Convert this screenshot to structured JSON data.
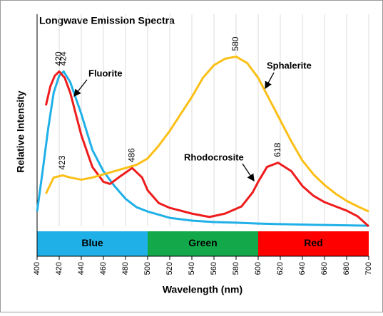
{
  "chart_data": {
    "type": "line",
    "title": "Longwave Emission Spectra",
    "x_label": "Wavelength (nm)",
    "y_label": "Relative Intensity",
    "xlim": [
      400,
      700
    ],
    "xticks": [
      400,
      420,
      440,
      460,
      480,
      500,
      520,
      540,
      560,
      580,
      600,
      620,
      640,
      660,
      680,
      700
    ],
    "ylim": [
      0,
      1
    ],
    "grid": true,
    "series": [
      {
        "name": "Fluorite",
        "color": "#1fb0e8",
        "x": [
          400,
          405,
          410,
          415,
          420,
          424,
          430,
          440,
          450,
          460,
          470,
          480,
          490,
          500,
          520,
          540,
          560,
          580,
          600,
          650,
          700
        ],
        "values": [
          0.07,
          0.26,
          0.46,
          0.63,
          0.71,
          0.73,
          0.68,
          0.53,
          0.36,
          0.26,
          0.19,
          0.13,
          0.09,
          0.07,
          0.04,
          0.027,
          0.02,
          0.017,
          0.013,
          0.007,
          0.003
        ]
      },
      {
        "name": "Rhodocrosite",
        "color": "#ee1c1c",
        "x": [
          408,
          412,
          416,
          420,
          425,
          430,
          440,
          450,
          460,
          466,
          475,
          486,
          495,
          500,
          510,
          520,
          540,
          556,
          570,
          585,
          595,
          600,
          608,
          618,
          630,
          640,
          650,
          660,
          670,
          680,
          690,
          700
        ],
        "values": [
          0.57,
          0.66,
          0.71,
          0.73,
          0.7,
          0.63,
          0.43,
          0.28,
          0.21,
          0.2,
          0.235,
          0.275,
          0.23,
          0.17,
          0.11,
          0.087,
          0.06,
          0.044,
          0.06,
          0.094,
          0.16,
          0.21,
          0.28,
          0.3,
          0.26,
          0.19,
          0.144,
          0.114,
          0.094,
          0.074,
          0.047,
          0
        ]
      },
      {
        "name": "Sphalerite",
        "color": "#fbbf16",
        "x": [
          408,
          415,
          423,
          430,
          440,
          450,
          460,
          470,
          480,
          490,
          500,
          510,
          520,
          530,
          540,
          550,
          560,
          570,
          580,
          590,
          600,
          610,
          620,
          630,
          640,
          650,
          660,
          670,
          680,
          690,
          700
        ],
        "values": [
          0.154,
          0.23,
          0.24,
          0.23,
          0.22,
          0.23,
          0.245,
          0.26,
          0.275,
          0.29,
          0.32,
          0.38,
          0.45,
          0.53,
          0.61,
          0.7,
          0.76,
          0.79,
          0.8,
          0.77,
          0.7,
          0.6,
          0.5,
          0.4,
          0.31,
          0.245,
          0.195,
          0.154,
          0.12,
          0.094,
          0.07
        ]
      }
    ],
    "annotations": [
      {
        "text": "420",
        "x": 420,
        "series": 1
      },
      {
        "text": "424",
        "x": 424,
        "series": 0
      },
      {
        "text": "423",
        "x": 423,
        "series": 2
      },
      {
        "text": "486",
        "x": 486,
        "series": 1
      },
      {
        "text": "580",
        "x": 580,
        "series": 2
      },
      {
        "text": "618",
        "x": 618,
        "series": 1
      }
    ],
    "bands": [
      {
        "label": "Blue",
        "start": 400,
        "end": 500,
        "color": "#1fb0e8"
      },
      {
        "label": "Green",
        "start": 500,
        "end": 600,
        "color": "#13a84a"
      },
      {
        "label": "Red",
        "start": 600,
        "end": 700,
        "color": "#ff0000"
      }
    ]
  }
}
